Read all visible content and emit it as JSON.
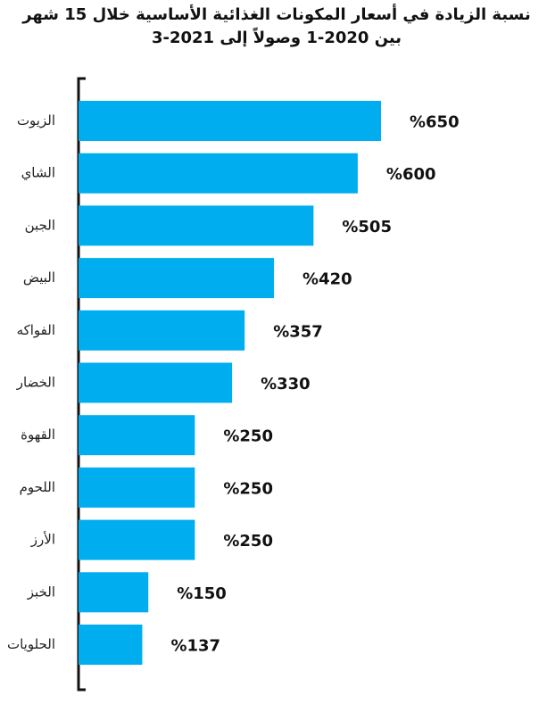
{
  "chart_data": {
    "type": "bar",
    "orientation": "horizontal",
    "title": "نسبة الزيادة في أسعار المكونات الغذائية الأساسية خلال 15 شهر بين 2020-1 وصولاً إلى 2021-3",
    "categories": [
      "الزيوت",
      "الشاي",
      "الجبن",
      "البيض",
      "الفواكه",
      "الخضار",
      "القهوة",
      "اللحوم",
      "الأرز",
      "الخبز",
      "الحلويات"
    ],
    "values": [
      650,
      600,
      505,
      420,
      357,
      330,
      250,
      250,
      250,
      150,
      137
    ],
    "value_labels": [
      "%650",
      "%600",
      "%505",
      "%420",
      "%357",
      "%330",
      "%250",
      "%250",
      "%250",
      "%150",
      "%137"
    ],
    "color": "#00aeef"
  }
}
